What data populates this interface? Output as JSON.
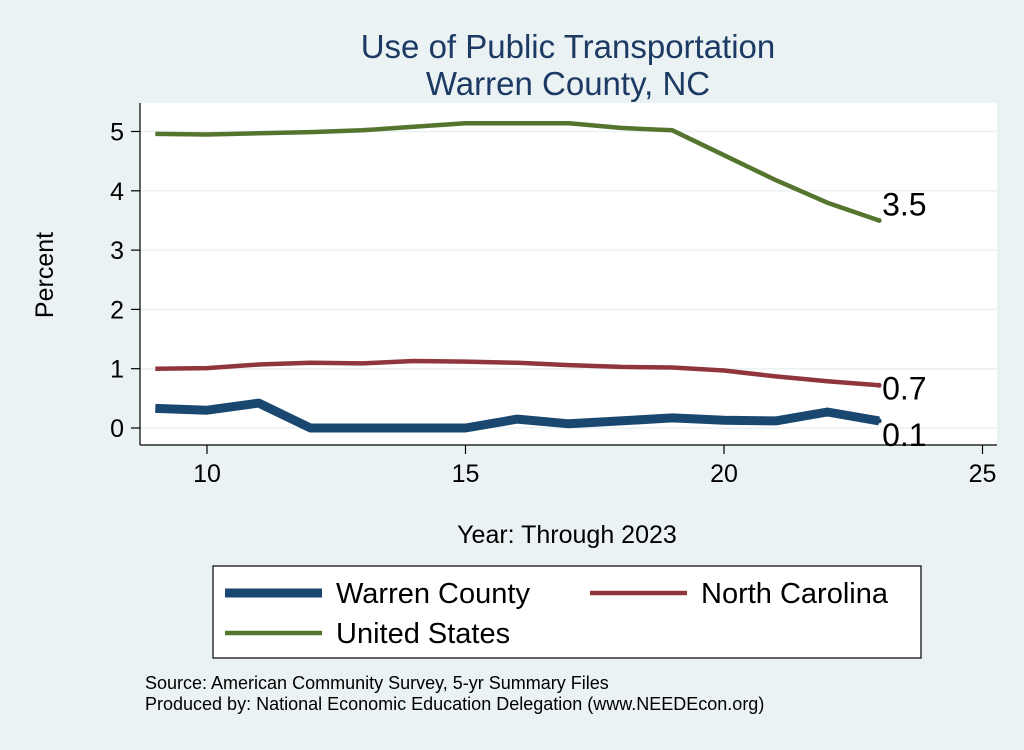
{
  "chart_data": {
    "type": "line",
    "title": "Use of Public Transportation",
    "subtitle": "Warren County, NC",
    "xlabel": "Year: Through 2023",
    "ylabel": "Percent",
    "xlim": [
      9,
      25
    ],
    "ylim": [
      0,
      5
    ],
    "x_ticks": [
      "10",
      "15",
      "20",
      "25"
    ],
    "y_ticks": [
      "0",
      "1",
      "2",
      "3",
      "4",
      "5"
    ],
    "grid": true,
    "legend_position": "bottom",
    "x": [
      9,
      10,
      11,
      12,
      13,
      14,
      15,
      16,
      17,
      18,
      19,
      20,
      21,
      22,
      23
    ],
    "series": [
      {
        "name": "Warren County",
        "color": "#1a476f",
        "values": [
          0.33,
          0.3,
          0.42,
          0.0,
          0.0,
          0.0,
          0.0,
          0.15,
          0.07,
          0.12,
          0.17,
          0.13,
          0.12,
          0.27,
          0.12
        ],
        "end_label": "0.1"
      },
      {
        "name": "North Carolina",
        "color": "#90353b",
        "values": [
          1.0,
          1.01,
          1.07,
          1.1,
          1.09,
          1.13,
          1.12,
          1.1,
          1.06,
          1.03,
          1.02,
          0.97,
          0.87,
          0.79,
          0.72
        ],
        "end_label": "0.7"
      },
      {
        "name": "United States",
        "color": "#55752f",
        "values": [
          4.96,
          4.95,
          4.97,
          4.99,
          5.02,
          5.08,
          5.14,
          5.14,
          5.14,
          5.06,
          5.02,
          4.6,
          4.18,
          3.8,
          3.5
        ],
        "end_label": "3.5"
      }
    ]
  },
  "footer": {
    "source": "Source: American Community Survey, 5-yr Summary Files",
    "produced": "Produced by: National Economic Education Delegation (www.NEEDEcon.org)"
  }
}
